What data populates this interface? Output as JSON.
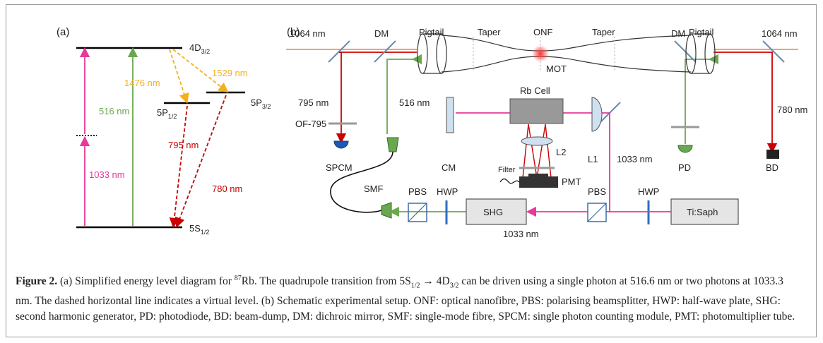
{
  "panel_a": {
    "label": "(a)",
    "levels": {
      "d": {
        "name": "4D",
        "sub": "3/2"
      },
      "p32": {
        "name": "5P",
        "sub": "3/2"
      },
      "p12": {
        "name": "5P",
        "sub": "1/2"
      },
      "s": {
        "name": "5S",
        "sub": "1/2"
      }
    },
    "transitions": {
      "t1529": "1529 nm",
      "t1476": "1476 nm",
      "t516": "516 nm",
      "t795": "795 nm",
      "t1033": "1033 nm",
      "t780": "780 nm"
    }
  },
  "panel_b": {
    "label": "(b)",
    "pigtail_left": "Pigtail",
    "taper_left": "Taper",
    "onf": "ONF",
    "taper_right": "Taper",
    "pigtail_right": "Pigtail",
    "wl_1064_left": "1064 nm",
    "dm_left": "DM",
    "dm_right": "DM",
    "wl_1064_right": "1064 nm",
    "mot": "MOT",
    "wl_795": "795 nm",
    "wl_516": "516 nm",
    "of795": "OF-795",
    "rb_cell": "Rb Cell",
    "wl_780": "780 nm",
    "l2": "L2",
    "l1": "L1",
    "wl_1033_up": "1033 nm",
    "cm": "CM",
    "spcm": "SPCM",
    "pd": "PD",
    "bd": "BD",
    "filter": "Filter",
    "pmt": "PMT",
    "smf": "SMF",
    "pbs_left": "PBS",
    "hwp_left": "HWP",
    "shg": "SHG",
    "pbs_right": "PBS",
    "hwp_right": "HWP",
    "tisaph": "Ti:Saph",
    "wl_1033_bottom": "1033 nm"
  },
  "caption": {
    "label": "Figure 2.",
    "p1": " (a) Simplified energy level diagram for ",
    "sup1": "87",
    "p2": "Rb. The quadrupole transition from 5S",
    "sub1": "1/2",
    "p3": " → 4D",
    "sub2": "3/2",
    "p4": " can be driven using a single photon at 516.6 nm or two photons at 1033.3 nm. The dashed horizontal line indicates a virtual level. (b) Schematic experimental setup. ONF: optical nanofibre, PBS: polarising beamsplitter, HWP: half-wave plate, SHG: second harmonic generator, PD: photodiode, BD: beam-dump, DM: dichroic mirror, SMF: single-mode fibre, SPCM: single photon counting module, PMT: photomultiplier tube."
  }
}
